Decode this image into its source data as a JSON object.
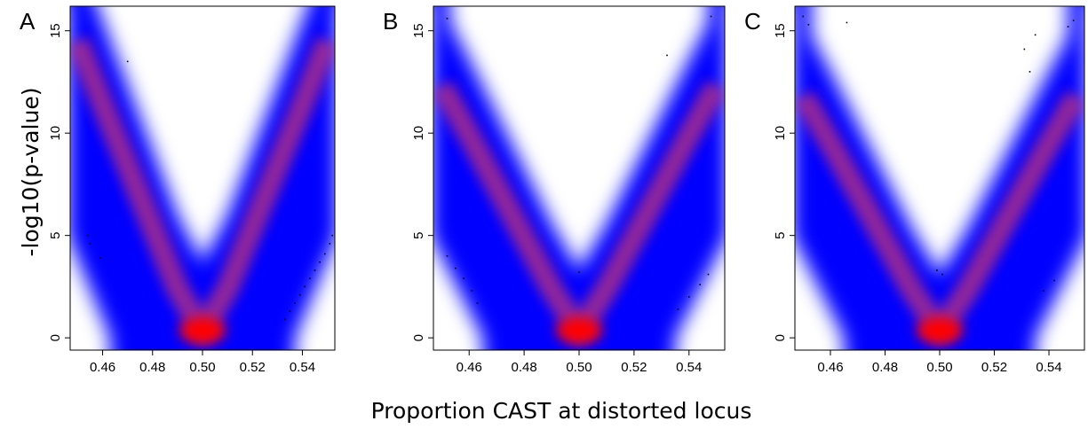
{
  "figure": {
    "xlabel": "Proportion CAST at distorted locus",
    "ylabel": "-log10(p-value)"
  },
  "colors": {
    "high_density": "#ff0000",
    "mid_density": "#0000ff",
    "low_density": "#ffffff",
    "points": "#000000"
  },
  "chart_data": [
    {
      "panel": "A",
      "type": "heatmap",
      "subtype": "smoothed density scatter",
      "xlim": [
        0.447,
        0.553
      ],
      "ylim": [
        -0.6,
        16.2
      ],
      "xticks": [
        0.46,
        0.48,
        0.5,
        0.52,
        0.54
      ],
      "xtick_labels": [
        "0.46",
        "0.48",
        "0.50",
        "0.52",
        "0.54"
      ],
      "yticks": [
        0,
        5,
        10,
        15
      ],
      "ytick_labels": [
        "0",
        "5",
        "10",
        "15"
      ],
      "density_ridge": {
        "x": [
          0.45,
          0.46,
          0.47,
          0.48,
          0.49,
          0.5,
          0.51,
          0.52,
          0.53,
          0.54,
          0.55
        ],
        "y": [
          14.5,
          11.4,
          8.4,
          5.4,
          2.4,
          0.3,
          2.4,
          5.4,
          8.4,
          11.4,
          14.5
        ]
      },
      "left_edge_x_at_y": {
        "y": [
          0,
          5,
          10,
          15
        ],
        "x": [
          0.463,
          0.446,
          0.446,
          0.446
        ]
      },
      "right_edge_x_at_y": {
        "y": [
          0,
          5,
          10,
          15
        ],
        "x": [
          0.537,
          0.554,
          0.554,
          0.554
        ]
      },
      "hollow_bottom_y": 3.7,
      "outliers": [
        {
          "x": 0.454,
          "y": 5.0
        },
        {
          "x": 0.455,
          "y": 4.6
        },
        {
          "x": 0.459,
          "y": 3.9
        },
        {
          "x": 0.47,
          "y": 13.5
        },
        {
          "x": 0.533,
          "y": 0.9
        },
        {
          "x": 0.535,
          "y": 1.3
        },
        {
          "x": 0.537,
          "y": 1.7
        },
        {
          "x": 0.539,
          "y": 2.1
        },
        {
          "x": 0.541,
          "y": 2.5
        },
        {
          "x": 0.543,
          "y": 2.9
        },
        {
          "x": 0.545,
          "y": 3.3
        },
        {
          "x": 0.547,
          "y": 3.7
        },
        {
          "x": 0.549,
          "y": 4.1
        },
        {
          "x": 0.551,
          "y": 4.6
        },
        {
          "x": 0.552,
          "y": 5.0
        }
      ]
    },
    {
      "panel": "B",
      "type": "heatmap",
      "subtype": "smoothed density scatter",
      "xlim": [
        0.447,
        0.553
      ],
      "ylim": [
        -0.6,
        16.2
      ],
      "xticks": [
        0.46,
        0.48,
        0.5,
        0.52,
        0.54
      ],
      "xtick_labels": [
        "0.46",
        "0.48",
        "0.50",
        "0.52",
        "0.54"
      ],
      "yticks": [
        0,
        5,
        10,
        15
      ],
      "ytick_labels": [
        "0",
        "5",
        "10",
        "15"
      ],
      "density_ridge": {
        "x": [
          0.45,
          0.46,
          0.47,
          0.48,
          0.49,
          0.5,
          0.51,
          0.52,
          0.53,
          0.54,
          0.55
        ],
        "y": [
          12.3,
          9.9,
          7.4,
          4.9,
          2.4,
          0.3,
          2.4,
          4.9,
          7.4,
          9.9,
          12.3
        ]
      },
      "left_edge_x_at_y": {
        "y": [
          0,
          5,
          10,
          15
        ],
        "x": [
          0.465,
          0.446,
          0.446,
          0.446
        ]
      },
      "right_edge_x_at_y": {
        "y": [
          0,
          5,
          10,
          15
        ],
        "x": [
          0.535,
          0.554,
          0.554,
          0.554
        ]
      },
      "hollow_bottom_y": 3.3,
      "outliers": [
        {
          "x": 0.452,
          "y": 15.6
        },
        {
          "x": 0.452,
          "y": 4.0
        },
        {
          "x": 0.455,
          "y": 3.4
        },
        {
          "x": 0.458,
          "y": 2.9
        },
        {
          "x": 0.461,
          "y": 2.3
        },
        {
          "x": 0.463,
          "y": 1.7
        },
        {
          "x": 0.5,
          "y": 3.2
        },
        {
          "x": 0.532,
          "y": 13.8
        },
        {
          "x": 0.536,
          "y": 1.4
        },
        {
          "x": 0.54,
          "y": 2.0
        },
        {
          "x": 0.544,
          "y": 2.6
        },
        {
          "x": 0.547,
          "y": 3.1
        },
        {
          "x": 0.548,
          "y": 15.7
        }
      ]
    },
    {
      "panel": "C",
      "type": "heatmap",
      "subtype": "smoothed density scatter",
      "xlim": [
        0.447,
        0.553
      ],
      "ylim": [
        -0.6,
        16.2
      ],
      "xticks": [
        0.46,
        0.48,
        0.5,
        0.52,
        0.54
      ],
      "xtick_labels": [
        "0.46",
        "0.48",
        "0.50",
        "0.52",
        "0.54"
      ],
      "yticks": [
        0,
        5,
        10,
        15
      ],
      "ytick_labels": [
        "0",
        "5",
        "10",
        "15"
      ],
      "density_ridge": {
        "x": [
          0.45,
          0.46,
          0.47,
          0.48,
          0.49,
          0.5,
          0.51,
          0.52,
          0.53,
          0.54,
          0.55
        ],
        "y": [
          11.8,
          9.5,
          7.1,
          4.7,
          2.3,
          0.3,
          2.3,
          4.7,
          7.1,
          9.5,
          11.8
        ]
      },
      "left_edge_x_at_y": {
        "y": [
          0,
          5,
          10,
          15
        ],
        "x": [
          0.465,
          0.446,
          0.446,
          0.446
        ]
      },
      "right_edge_x_at_y": {
        "y": [
          0,
          5,
          10,
          15
        ],
        "x": [
          0.535,
          0.554,
          0.554,
          0.554
        ]
      },
      "hollow_bottom_y": 3.1,
      "outliers": [
        {
          "x": 0.45,
          "y": 15.7
        },
        {
          "x": 0.452,
          "y": 15.3
        },
        {
          "x": 0.466,
          "y": 15.4
        },
        {
          "x": 0.499,
          "y": 3.3
        },
        {
          "x": 0.501,
          "y": 3.1
        },
        {
          "x": 0.531,
          "y": 14.1
        },
        {
          "x": 0.533,
          "y": 13.0
        },
        {
          "x": 0.535,
          "y": 14.8
        },
        {
          "x": 0.538,
          "y": 2.3
        },
        {
          "x": 0.542,
          "y": 2.8
        },
        {
          "x": 0.547,
          "y": 15.2
        },
        {
          "x": 0.549,
          "y": 15.5
        }
      ]
    }
  ]
}
